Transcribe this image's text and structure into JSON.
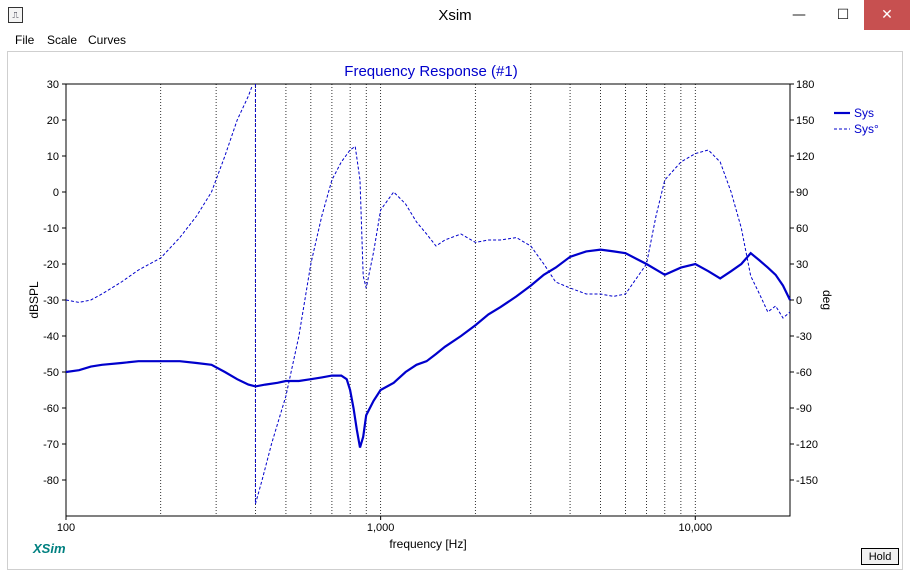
{
  "window": {
    "title": "Xsim",
    "icon": "xsim-app-icon",
    "min_glyph": "—",
    "max_glyph": "☐",
    "close_glyph": "✕"
  },
  "menu": {
    "items": [
      "File",
      "Scale",
      "Curves"
    ]
  },
  "brand": "XSim",
  "hold_label": "Hold",
  "chart_data": {
    "type": "line",
    "title": "Frequency Response (#1)",
    "xlabel": "frequency [Hz]",
    "ylabel_left": "dBSPL",
    "ylabel_right": "deg",
    "x_scale": "log",
    "xlim": [
      100,
      20000
    ],
    "ylim_left": [
      -90,
      30
    ],
    "ylim_right": [
      -180,
      180
    ],
    "x_tick_labels": [
      "100",
      "1,000",
      "10,000"
    ],
    "y_left_ticks": [
      30,
      20,
      10,
      0,
      -10,
      -20,
      -30,
      -40,
      -50,
      -60,
      -70,
      -80
    ],
    "y_right_ticks": [
      180,
      150,
      120,
      90,
      60,
      30,
      0,
      -30,
      -60,
      -90,
      -120,
      -150
    ],
    "grid": "vertical",
    "legend_position": "top-right",
    "colors": {
      "curve": "#0000cc",
      "title": "#0000cc",
      "brand": "#008080",
      "grid": "#000000"
    },
    "series": [
      {
        "name": "Sys",
        "style": "solid",
        "axis": "left",
        "x": [
          100,
          110,
          120,
          130,
          150,
          170,
          200,
          230,
          260,
          290,
          320,
          350,
          380,
          400,
          430,
          470,
          500,
          550,
          600,
          650,
          700,
          750,
          780,
          800,
          820,
          840,
          860,
          880,
          900,
          950,
          1000,
          1100,
          1200,
          1300,
          1400,
          1500,
          1600,
          1800,
          2000,
          2200,
          2400,
          2700,
          3000,
          3300,
          3600,
          4000,
          4500,
          5000,
          5500,
          6000,
          7000,
          8000,
          9000,
          10000,
          11000,
          12000,
          13000,
          14000,
          15000,
          16000,
          17000,
          18000,
          19000,
          20000
        ],
        "values": [
          -50,
          -49.5,
          -48.5,
          -48,
          -47.5,
          -47,
          -47,
          -47,
          -47.5,
          -48,
          -50,
          -52,
          -53.5,
          -54,
          -53.5,
          -53,
          -52.5,
          -52.5,
          -52,
          -51.5,
          -51,
          -51,
          -52,
          -55,
          -60,
          -66,
          -71,
          -68,
          -62,
          -58,
          -55,
          -53,
          -50,
          -48,
          -47,
          -45,
          -43,
          -40,
          -37,
          -34,
          -32,
          -29,
          -26,
          -23,
          -21,
          -18,
          -16.5,
          -16,
          -16.5,
          -17,
          -20,
          -23,
          -21,
          -20,
          -22,
          -24,
          -22,
          -20,
          -17,
          -19,
          -21,
          -23,
          -26,
          -30
        ]
      },
      {
        "name": "Sys°",
        "style": "dashed",
        "axis": "right",
        "x": [
          100,
          110,
          120,
          130,
          150,
          170,
          200,
          230,
          260,
          290,
          320,
          350,
          380,
          390,
          400,
          420,
          450,
          500,
          550,
          600,
          650,
          700,
          750,
          800,
          830,
          860,
          880,
          900,
          950,
          1000,
          1100,
          1200,
          1300,
          1400,
          1500,
          1600,
          1800,
          2000,
          2200,
          2400,
          2700,
          3000,
          3300,
          3600,
          4000,
          4500,
          5000,
          5500,
          6000,
          7000,
          7500,
          8000,
          9000,
          10000,
          11000,
          12000,
          13000,
          14000,
          15000,
          16000,
          17000,
          18000,
          19000,
          20000
        ],
        "values": [
          0,
          -2,
          0,
          5,
          15,
          25,
          35,
          52,
          70,
          90,
          120,
          150,
          170,
          178,
          -170,
          -150,
          -120,
          -80,
          -30,
          30,
          70,
          100,
          115,
          125,
          128,
          100,
          20,
          10,
          40,
          75,
          90,
          80,
          65,
          55,
          45,
          50,
          55,
          48,
          50,
          50,
          52,
          45,
          30,
          15,
          10,
          5,
          5,
          3,
          5,
          30,
          70,
          100,
          115,
          122,
          125,
          115,
          90,
          60,
          20,
          5,
          -10,
          -5,
          -15,
          -10
        ]
      }
    ]
  }
}
